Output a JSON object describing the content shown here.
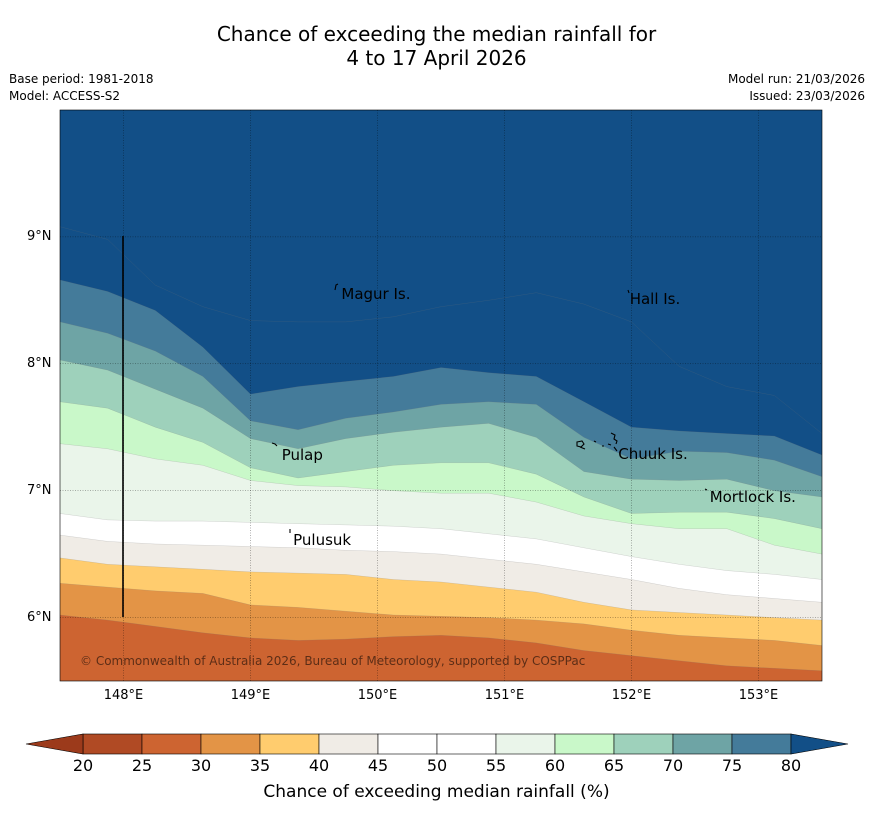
{
  "header": {
    "title_line1": "Chance of exceeding the median rainfall for",
    "title_line2": "4 to 17 April 2026",
    "base_period": "Base period: 1981-2018",
    "model": "Model: ACCESS-S2",
    "model_run": "Model run: 21/03/2026",
    "issued": "Issued: 23/03/2026"
  },
  "map": {
    "lat_ticks": [
      "9°N",
      "8°N",
      "7°N",
      "6°N"
    ],
    "lon_ticks": [
      "148°E",
      "149°E",
      "150°E",
      "151°E",
      "152°E",
      "153°E"
    ],
    "extent": {
      "lon_min": 147.5,
      "lon_max": 153.5,
      "lat_min": 5.5,
      "lat_max": 10.0
    },
    "places": [
      {
        "name": "Magur Is.",
        "lon": 149.7,
        "lat": 8.55
      },
      {
        "name": "Hall Is.",
        "lon": 151.97,
        "lat": 8.51
      },
      {
        "name": "Pulap",
        "lon": 149.23,
        "lat": 7.28
      },
      {
        "name": "Chuuk Is.",
        "lon": 151.88,
        "lat": 7.29
      },
      {
        "name": "Mortlock Is.",
        "lon": 152.6,
        "lat": 6.95
      },
      {
        "name": "Pulusuk",
        "lon": 149.32,
        "lat": 6.61
      }
    ],
    "copyright": "© Commonwealth of Australia 2026, Bureau of Meteorology, supported by COSPPac"
  },
  "colorbar": {
    "ticks": [
      "20",
      "25",
      "30",
      "35",
      "40",
      "45",
      "50",
      "55",
      "60",
      "65",
      "70",
      "75",
      "80"
    ],
    "colors": [
      "#b04a24",
      "#cd6431",
      "#e39446",
      "#ffcc6e",
      "#f0ece6",
      "#ffffff",
      "#ffffff",
      "#eaf5ea",
      "#c9f8c9",
      "#9ed1bb",
      "#6ea4a5",
      "#447b9a"
    ],
    "under_color": "#9c3a1b",
    "over_color": "#124f87",
    "title": "Chance of exceeding median rainfall (%)"
  },
  "contour_bands": [
    {
      "color": "#124f87",
      "boundary_lat": [
        9.08,
        8.98,
        8.62,
        8.45,
        8.34,
        8.33,
        8.33,
        8.37,
        8.45,
        8.5,
        8.56,
        8.47,
        8.33,
        7.98,
        7.82,
        7.75,
        7.45
      ]
    },
    {
      "color": "#447b9a",
      "boundary_lat": [
        8.66,
        8.57,
        8.42,
        8.13,
        7.76,
        7.82,
        7.86,
        7.9,
        7.97,
        7.93,
        7.9,
        7.7,
        7.5,
        7.47,
        7.45,
        7.43,
        7.28
      ]
    },
    {
      "color": "#6ea4a5",
      "boundary_lat": [
        8.33,
        8.24,
        8.1,
        7.9,
        7.55,
        7.48,
        7.57,
        7.62,
        7.68,
        7.7,
        7.68,
        7.42,
        7.25,
        7.31,
        7.3,
        7.24,
        7.11
      ]
    },
    {
      "color": "#9ed1bb",
      "boundary_lat": [
        8.03,
        7.95,
        7.8,
        7.65,
        7.41,
        7.33,
        7.41,
        7.46,
        7.5,
        7.53,
        7.42,
        7.15,
        7.09,
        7.08,
        7.09,
        7.0,
        6.95
      ]
    },
    {
      "color": "#c9f8c9",
      "boundary_lat": [
        7.7,
        7.65,
        7.5,
        7.38,
        7.18,
        7.1,
        7.15,
        7.2,
        7.22,
        7.22,
        7.13,
        6.95,
        6.82,
        6.83,
        6.83,
        6.78,
        6.7
      ]
    },
    {
      "color": "#eaf5ea",
      "boundary_lat": [
        7.37,
        7.33,
        7.25,
        7.2,
        7.08,
        7.04,
        7.03,
        7.0,
        6.98,
        6.98,
        6.91,
        6.8,
        6.74,
        6.7,
        6.7,
        6.57,
        6.5
      ]
    },
    {
      "color": "#ffffff",
      "boundary_lat": [
        6.82,
        6.77,
        6.76,
        6.76,
        6.75,
        6.74,
        6.73,
        6.72,
        6.7,
        6.66,
        6.62,
        6.55,
        6.48,
        6.42,
        6.37,
        6.34,
        6.3
      ]
    },
    {
      "color": "#f0ece6",
      "boundary_lat": [
        6.65,
        6.6,
        6.58,
        6.57,
        6.56,
        6.55,
        6.53,
        6.52,
        6.5,
        6.46,
        6.42,
        6.36,
        6.3,
        6.23,
        6.18,
        6.15,
        6.12
      ]
    },
    {
      "color": "#ffcc6e",
      "boundary_lat": [
        6.47,
        6.42,
        6.4,
        6.38,
        6.36,
        6.35,
        6.34,
        6.3,
        6.28,
        6.24,
        6.2,
        6.12,
        6.06,
        6.04,
        6.02,
        6.0,
        5.98
      ]
    },
    {
      "color": "#e39446",
      "boundary_lat": [
        6.27,
        6.24,
        6.21,
        6.19,
        6.1,
        6.08,
        6.05,
        6.02,
        6.01,
        6.0,
        5.98,
        5.95,
        5.9,
        5.86,
        5.84,
        5.82,
        5.78
      ]
    },
    {
      "color": "#cd6431",
      "boundary_lat": [
        6.02,
        5.98,
        5.93,
        5.88,
        5.84,
        5.82,
        5.83,
        5.85,
        5.86,
        5.84,
        5.8,
        5.74,
        5.7,
        5.66,
        5.62,
        5.6,
        5.58
      ]
    },
    {
      "color": "#b04a24",
      "boundary_lat": [
        5.5,
        5.5,
        5.5,
        5.5,
        5.5,
        5.5,
        5.5,
        5.5,
        5.5,
        5.5,
        5.5,
        5.5,
        5.5,
        5.5,
        5.5,
        5.5,
        5.5
      ]
    }
  ]
}
